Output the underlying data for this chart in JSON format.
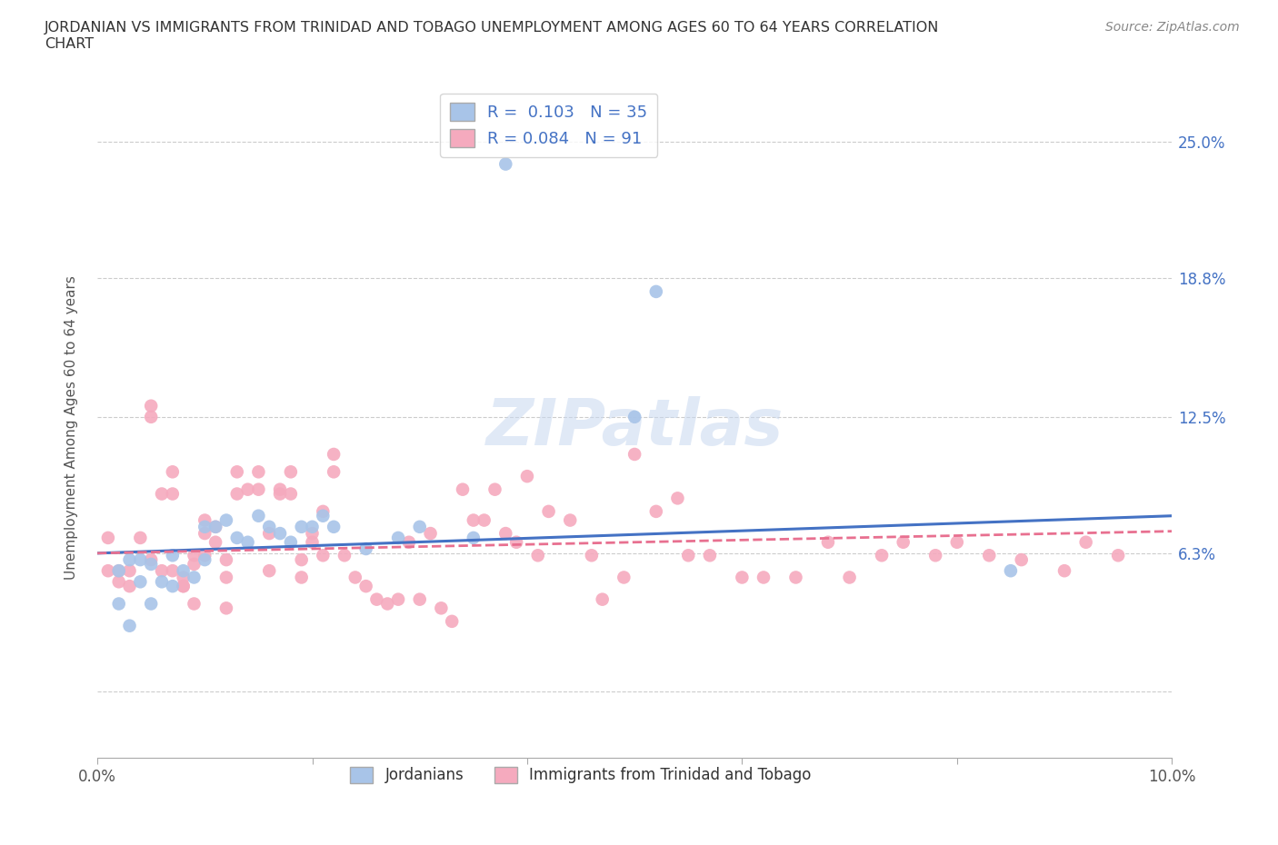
{
  "title": "JORDANIAN VS IMMIGRANTS FROM TRINIDAD AND TOBAGO UNEMPLOYMENT AMONG AGES 60 TO 64 YEARS CORRELATION\nCHART",
  "source": "Source: ZipAtlas.com",
  "ylabel": "Unemployment Among Ages 60 to 64 years",
  "xlim": [
    0.0,
    0.1
  ],
  "ylim": [
    -0.03,
    0.27
  ],
  "xticks": [
    0.0,
    0.02,
    0.04,
    0.06,
    0.08,
    0.1
  ],
  "xticklabels": [
    "0.0%",
    "",
    "",
    "",
    "",
    "10.0%"
  ],
  "ytick_positions": [
    0.0,
    0.063,
    0.125,
    0.188,
    0.25
  ],
  "ytick_labels": [
    "",
    "6.3%",
    "12.5%",
    "18.8%",
    "25.0%"
  ],
  "blue_R": 0.103,
  "blue_N": 35,
  "pink_R": 0.084,
  "pink_N": 91,
  "blue_color": "#a8c4e8",
  "pink_color": "#f5aabe",
  "blue_line_color": "#4472c4",
  "pink_line_color": "#e87090",
  "legend_blue_label": "Jordanians",
  "legend_pink_label": "Immigrants from Trinidad and Tobago",
  "blue_scatter_x": [
    0.002,
    0.002,
    0.003,
    0.003,
    0.004,
    0.004,
    0.005,
    0.005,
    0.006,
    0.007,
    0.007,
    0.008,
    0.009,
    0.01,
    0.01,
    0.011,
    0.012,
    0.013,
    0.014,
    0.015,
    0.016,
    0.017,
    0.018,
    0.019,
    0.02,
    0.021,
    0.022,
    0.025,
    0.028,
    0.03,
    0.035,
    0.05,
    0.052,
    0.085,
    0.038
  ],
  "blue_scatter_y": [
    0.04,
    0.055,
    0.06,
    0.03,
    0.05,
    0.06,
    0.058,
    0.04,
    0.05,
    0.062,
    0.048,
    0.055,
    0.052,
    0.06,
    0.075,
    0.075,
    0.078,
    0.07,
    0.068,
    0.08,
    0.075,
    0.072,
    0.068,
    0.075,
    0.075,
    0.08,
    0.075,
    0.065,
    0.07,
    0.075,
    0.07,
    0.125,
    0.182,
    0.055,
    0.24
  ],
  "pink_scatter_x": [
    0.001,
    0.001,
    0.002,
    0.002,
    0.003,
    0.003,
    0.004,
    0.005,
    0.005,
    0.005,
    0.006,
    0.006,
    0.007,
    0.007,
    0.008,
    0.008,
    0.009,
    0.009,
    0.01,
    0.01,
    0.01,
    0.011,
    0.011,
    0.012,
    0.012,
    0.013,
    0.013,
    0.014,
    0.015,
    0.015,
    0.016,
    0.016,
    0.017,
    0.017,
    0.018,
    0.018,
    0.019,
    0.019,
    0.02,
    0.02,
    0.021,
    0.021,
    0.022,
    0.022,
    0.023,
    0.024,
    0.025,
    0.026,
    0.027,
    0.028,
    0.029,
    0.03,
    0.031,
    0.032,
    0.033,
    0.034,
    0.035,
    0.036,
    0.037,
    0.038,
    0.039,
    0.04,
    0.041,
    0.042,
    0.044,
    0.046,
    0.047,
    0.049,
    0.05,
    0.052,
    0.054,
    0.055,
    0.057,
    0.06,
    0.062,
    0.065,
    0.068,
    0.07,
    0.073,
    0.075,
    0.078,
    0.08,
    0.083,
    0.086,
    0.09,
    0.092,
    0.095,
    0.007,
    0.008,
    0.009,
    0.012
  ],
  "pink_scatter_y": [
    0.055,
    0.07,
    0.05,
    0.055,
    0.048,
    0.055,
    0.07,
    0.13,
    0.125,
    0.06,
    0.055,
    0.09,
    0.1,
    0.055,
    0.052,
    0.048,
    0.062,
    0.058,
    0.078,
    0.072,
    0.062,
    0.068,
    0.075,
    0.052,
    0.06,
    0.09,
    0.1,
    0.092,
    0.092,
    0.1,
    0.055,
    0.072,
    0.09,
    0.092,
    0.09,
    0.1,
    0.052,
    0.06,
    0.068,
    0.072,
    0.062,
    0.082,
    0.1,
    0.108,
    0.062,
    0.052,
    0.048,
    0.042,
    0.04,
    0.042,
    0.068,
    0.042,
    0.072,
    0.038,
    0.032,
    0.092,
    0.078,
    0.078,
    0.092,
    0.072,
    0.068,
    0.098,
    0.062,
    0.082,
    0.078,
    0.062,
    0.042,
    0.052,
    0.108,
    0.082,
    0.088,
    0.062,
    0.062,
    0.052,
    0.052,
    0.052,
    0.068,
    0.052,
    0.062,
    0.068,
    0.062,
    0.068,
    0.062,
    0.06,
    0.055,
    0.068,
    0.062,
    0.09,
    0.048,
    0.04,
    0.038
  ]
}
